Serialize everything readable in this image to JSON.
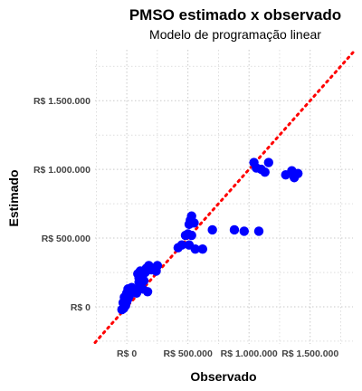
{
  "chart_data": {
    "type": "scatter",
    "title": "PMSO estimado x observado",
    "subtitle": "Modelo de programação linear",
    "xlabel": "Observado",
    "ylabel": "Estimado",
    "xlim": [
      -260000,
      1850000
    ],
    "ylim": [
      -270000,
      1870000
    ],
    "x_ticks": [
      0,
      500000,
      1000000,
      1500000
    ],
    "x_tick_labels": [
      "R$ 0",
      "R$ 500.000",
      "R$ 1.000.000",
      "R$ 1.500.000"
    ],
    "y_ticks": [
      0,
      500000,
      1000000,
      1500000
    ],
    "y_tick_labels": [
      "R$ 0",
      "R$ 500.000",
      "R$ 1.000.000",
      "R$ 1.500.000"
    ],
    "grid": true,
    "point_color": "#0000ff",
    "reference_line": {
      "slope": 1,
      "intercept": 0,
      "color": "#ff0000",
      "style": "dotted"
    },
    "points": [
      {
        "x": -40000,
        "y": -20000
      },
      {
        "x": -25000,
        "y": -10000
      },
      {
        "x": -10000,
        "y": 10000
      },
      {
        "x": -30000,
        "y": 30000
      },
      {
        "x": 0,
        "y": 40000
      },
      {
        "x": 10000,
        "y": 60000
      },
      {
        "x": -20000,
        "y": 70000
      },
      {
        "x": 20000,
        "y": 80000
      },
      {
        "x": 0,
        "y": 100000
      },
      {
        "x": 30000,
        "y": 110000
      },
      {
        "x": 10000,
        "y": 130000
      },
      {
        "x": 40000,
        "y": 140000
      },
      {
        "x": 60000,
        "y": 120000
      },
      {
        "x": 80000,
        "y": 100000
      },
      {
        "x": 110000,
        "y": 150000
      },
      {
        "x": 100000,
        "y": 180000
      },
      {
        "x": 100000,
        "y": 210000
      },
      {
        "x": 90000,
        "y": 240000
      },
      {
        "x": 110000,
        "y": 260000
      },
      {
        "x": 120000,
        "y": 220000
      },
      {
        "x": 140000,
        "y": 190000
      },
      {
        "x": 150000,
        "y": 250000
      },
      {
        "x": 160000,
        "y": 280000
      },
      {
        "x": 180000,
        "y": 300000
      },
      {
        "x": 200000,
        "y": 270000
      },
      {
        "x": 220000,
        "y": 280000
      },
      {
        "x": 250000,
        "y": 300000
      },
      {
        "x": 240000,
        "y": 260000
      },
      {
        "x": 130000,
        "y": 130000
      },
      {
        "x": 170000,
        "y": 110000
      },
      {
        "x": 420000,
        "y": 430000
      },
      {
        "x": 450000,
        "y": 450000
      },
      {
        "x": 480000,
        "y": 520000
      },
      {
        "x": 500000,
        "y": 530000
      },
      {
        "x": 510000,
        "y": 600000
      },
      {
        "x": 520000,
        "y": 630000
      },
      {
        "x": 530000,
        "y": 660000
      },
      {
        "x": 550000,
        "y": 610000
      },
      {
        "x": 530000,
        "y": 520000
      },
      {
        "x": 560000,
        "y": 420000
      },
      {
        "x": 510000,
        "y": 450000
      },
      {
        "x": 620000,
        "y": 420000
      },
      {
        "x": 700000,
        "y": 560000
      },
      {
        "x": 880000,
        "y": 560000
      },
      {
        "x": 960000,
        "y": 550000
      },
      {
        "x": 1080000,
        "y": 550000
      },
      {
        "x": 1040000,
        "y": 1050000
      },
      {
        "x": 1060000,
        "y": 1010000
      },
      {
        "x": 1100000,
        "y": 1000000
      },
      {
        "x": 1130000,
        "y": 980000
      },
      {
        "x": 1160000,
        "y": 1050000
      },
      {
        "x": 1300000,
        "y": 960000
      },
      {
        "x": 1350000,
        "y": 990000
      },
      {
        "x": 1370000,
        "y": 940000
      },
      {
        "x": 1400000,
        "y": 970000
      }
    ]
  }
}
